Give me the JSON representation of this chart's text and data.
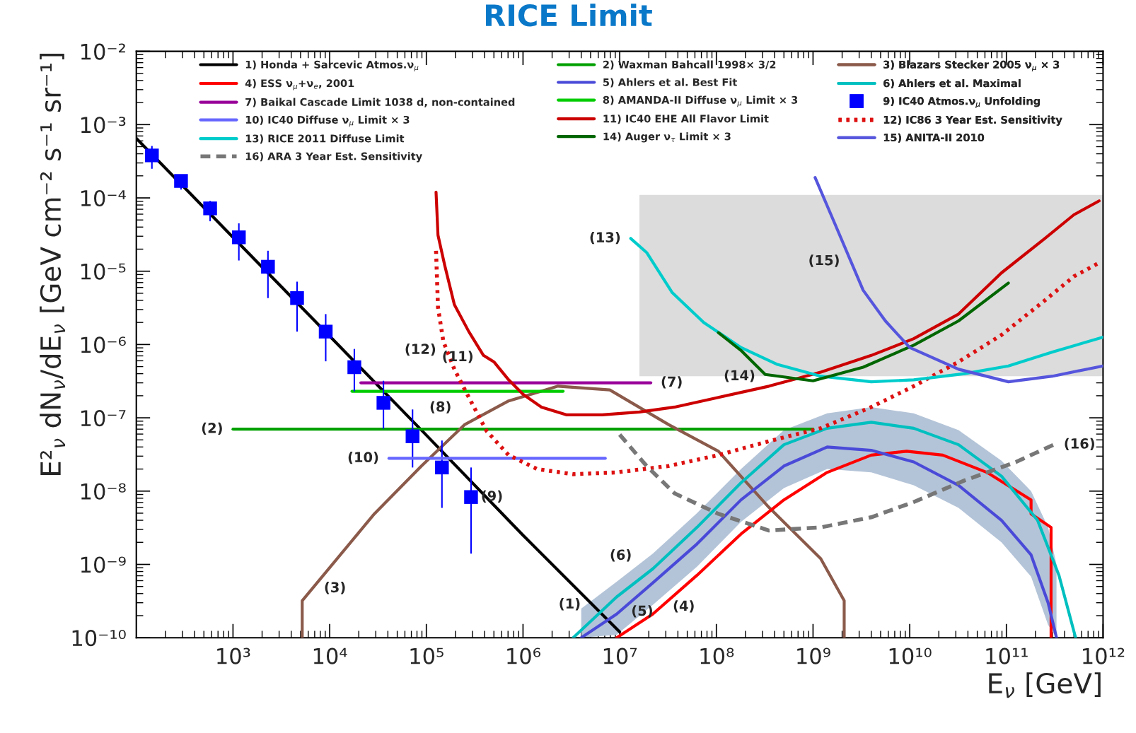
{
  "chart_data": {
    "type": "line",
    "title": "RICE Limit",
    "xlabel": "E$_{ν}$ [GeV]",
    "ylabel": "E²$_{ν}$ dN$_{ν}$/dE$_{ν}$ [GeV cm⁻² s⁻¹ sr⁻¹]",
    "log": "xy",
    "grid": false,
    "legend": "top",
    "xlim": [
      100,
      1000000000000.0
    ],
    "xticks": [
      {
        "value": 1000.0,
        "label": "10³"
      },
      {
        "value": 10000.0,
        "label": "10⁴"
      },
      {
        "value": 100000.0,
        "label": "10⁵"
      },
      {
        "value": 1000000.0,
        "label": "10⁶"
      },
      {
        "value": 10000000.0,
        "label": "10⁷"
      },
      {
        "value": 100000000.0,
        "label": "10⁸"
      },
      {
        "value": 1000000000.0,
        "label": "10⁹"
      },
      {
        "value": 10000000000.0,
        "label": "10¹⁰"
      },
      {
        "value": 100000000000.0,
        "label": "10¹¹"
      },
      {
        "value": 1000000000000.0,
        "label": "10¹²"
      }
    ],
    "ylim": [
      1e-10,
      0.01
    ],
    "yticks": [
      {
        "value": 1e-10,
        "label": "10⁻¹⁰"
      },
      {
        "value": 1e-09,
        "label": "10⁻⁹"
      },
      {
        "value": 1e-08,
        "label": "10⁻⁸"
      },
      {
        "value": 1e-07,
        "label": "10⁻⁷"
      },
      {
        "value": 1e-06,
        "label": "10⁻⁶"
      },
      {
        "value": 1e-05,
        "label": "10⁻⁵"
      },
      {
        "value": 0.0001,
        "label": "10⁻⁴"
      },
      {
        "value": 0.001,
        "label": "10⁻³"
      },
      {
        "value": 0.01,
        "label": "10⁻²"
      }
    ],
    "series": [
      {
        "type": "line",
        "color": "#dcdcdc",
        "x": [
          16000000.0,
          1000000000000.0
        ],
        "values": [
          null,
          null
        ],
        "upper": [
          0.00011,
          0.00011
        ],
        "lower": [
          3.7e-07,
          3.7e-07
        ]
      },
      {
        "type": "line",
        "color": "#b4c4d8",
        "x": [
          4000000.0,
          9300000.0,
          22000000.0,
          63000000.0,
          180000000.0,
          500000000.0,
          1400000000.0,
          4000000000.0,
          11000000000.0,
          32000000000.0,
          89000000000.0,
          180000000000.0,
          270000000000.0,
          330000000000.0
        ],
        "values": [
          null,
          null,
          null,
          null,
          null,
          null,
          null,
          null,
          null,
          null,
          null,
          null,
          null,
          null
        ],
        "upper": [
          2.5e-10,
          5.8e-10,
          1.4e-09,
          5e-09,
          2e-08,
          6.8e-08,
          1.15e-07,
          1.4e-07,
          1.15e-07,
          6.8e-08,
          2.6e-08,
          1e-08,
          3.2e-09,
          1e-09
        ],
        "lower": [
          1e-10,
          1.1e-10,
          2.8e-10,
          9.3e-10,
          3.8e-09,
          1.1e-08,
          2e-08,
          1.8e-08,
          1.2e-08,
          5.9e-09,
          2e-09,
          6.8e-10,
          1.5e-10,
          1e-10
        ]
      },
      {
        "name": "1) Honda + Sarcevic Atmos.ν$_{μ}$",
        "color": "#000000",
        "x": [
          100,
          1000.0,
          10000.0,
          100000.0,
          1000000.0,
          10000000.0
        ],
        "values": [
          0.00065,
          2.9e-05,
          1.3e-06,
          5.8e-08,
          2.5e-09,
          1.2e-10
        ]
      },
      {
        "name": "2) Waxman Bahcall 1998× 3/2",
        "color": "#00a000",
        "x": [
          1000.0,
          1000000000.0
        ],
        "values": [
          7e-08,
          7e-08
        ]
      },
      {
        "name": "3) Blazars Stecker 2005 ν$_{μ}$ × 3",
        "color": "#8b5a4a",
        "x": [
          5200.0,
          5200.0,
          29000.0,
          89000.0,
          250000.0,
          710000.0,
          2300000.0,
          7900000.0,
          32000000.0,
          105000000.0,
          350000000.0,
          1200000000.0,
          2100000000.0,
          2100000000.0
        ],
        "values": [
          1e-10,
          3.2e-10,
          4.9e-09,
          2.2e-08,
          8.1e-08,
          1.7e-07,
          2.7e-07,
          2.4e-07,
          8.1e-08,
          3.5e-08,
          6e-09,
          1.2e-09,
          3.2e-10,
          1e-10
        ]
      },
      {
        "name": "4) ESS ν$_{μ}$+ν$_{e}$, 2001",
        "color": "#ff0000",
        "x": [
          9300000.0,
          22000000.0,
          63000000.0,
          180000000.0,
          500000000.0,
          1400000000.0,
          4000000000.0,
          9300000000.0,
          22000000000.0,
          63000000000.0,
          180000000000.0,
          180000000000.0,
          290000000000.0,
          290000000000.0
        ],
        "values": [
          1e-10,
          2.1e-10,
          7.1e-10,
          2.6e-09,
          7.6e-09,
          1.8e-08,
          3.1e-08,
          3.5e-08,
          3.1e-08,
          1.8e-08,
          7.6e-09,
          4.9e-09,
          3.2e-09,
          1e-10
        ]
      },
      {
        "name": "5) Ahlers et al. Best Fit",
        "color": "#4a4ad8",
        "x": [
          4000000.0,
          9300000.0,
          22000000.0,
          63000000.0,
          180000000.0,
          500000000.0,
          1400000000.0,
          4000000000.0,
          11000000000.0,
          32000000000.0,
          89000000000.0,
          180000000000.0,
          270000000000.0,
          330000000000.0
        ],
        "values": [
          1e-10,
          2.1e-10,
          5.6e-10,
          1.9e-09,
          7.6e-09,
          2.2e-08,
          4e-08,
          3.6e-08,
          2.5e-08,
          1.2e-08,
          4e-09,
          1.35e-09,
          3e-10,
          1e-10
        ]
      },
      {
        "name": "6) Ahlers et al. Maximal",
        "color": "#00bfbf",
        "x": [
          3300000.0,
          9300000.0,
          22000000.0,
          63000000.0,
          180000000.0,
          500000000.0,
          1400000000.0,
          4000000000.0,
          11000000000.0,
          32000000000.0,
          89000000000.0,
          210000000000.0,
          350000000000.0,
          520000000000.0
        ],
        "values": [
          1e-10,
          3.6e-10,
          8.7e-10,
          3.2e-09,
          1.3e-08,
          4.3e-08,
          7.2e-08,
          8.7e-08,
          7.2e-08,
          4.3e-08,
          1.6e-08,
          4e-09,
          7.1e-10,
          1e-10
        ]
      },
      {
        "name": "7) Baikal Cascade Limit 1038 d, non-contained",
        "color": "#990099",
        "x": [
          21000.0,
          21000000.0
        ],
        "values": [
          3e-07,
          3e-07
        ]
      },
      {
        "name": "8) AMANDA-II Diffuse ν$_{μ}$ Limit × 3",
        "color": "#00cc00",
        "x": [
          17000.0,
          2600000.0
        ],
        "values": [
          2.3e-07,
          2.3e-07
        ]
      },
      {
        "name": "9) IC40 Atmos.ν$_{μ}$ Unfolding",
        "type": "scatter",
        "marker": "square",
        "color": "#0000ff",
        "x": [
          145,
          290,
          580,
          1150,
          2300,
          4600,
          9100,
          18000.0,
          36000.0,
          72000.0,
          145000.0,
          290000.0
        ],
        "values": [
          0.00038,
          0.00017,
          7.2e-05,
          2.9e-05,
          1.15e-05,
          4.3e-06,
          1.5e-06,
          4.9e-07,
          1.6e-07,
          5.6e-08,
          2.1e-08,
          8.3e-09
        ],
        "errors": [
          [
            0.00025,
            0.00051
          ],
          [
            0.00013,
            0.0002
          ],
          [
            4.8e-05,
            9.1e-05
          ],
          [
            1.4e-05,
            4.5e-05
          ],
          [
            4.3e-06,
            1.9e-05
          ],
          [
            1.5e-06,
            7.2e-06
          ],
          [
            5.9e-07,
            2.6e-06
          ],
          [
            2.3e-07,
            8.7e-07
          ],
          [
            7.1e-08,
            3.2e-07
          ],
          [
            2.1e-08,
            1.3e-07
          ],
          [
            5.9e-09,
            4.9e-08
          ],
          [
            1.4e-09,
            2.1e-08
          ]
        ]
      },
      {
        "name": "10) IC40 Diffuse ν$_{μ}$ Limit × 3",
        "color": "#6666ff",
        "x": [
          41000.0,
          7100000.0
        ],
        "values": [
          2.8e-08,
          2.8e-08
        ]
      },
      {
        "name": "11) IC40 EHE All Flavor Limit",
        "color": "#cc0000",
        "x": [
          126000.0,
          132000.0,
          155000.0,
          195000.0,
          275000.0,
          390000.0,
          500000.0,
          710000.0,
          1000000.0,
          1550000.0,
          2800000.0,
          6600000.0,
          16000000.0,
          37000000.0,
          105000000.0,
          350000000.0,
          1200000000.0,
          4000000000.0,
          11000000000.0,
          32000000000.0,
          89000000000.0,
          250000000000.0,
          500000000000.0,
          910000000000.0
        ],
        "values": [
          0.00012,
          3.1e-05,
          1.2e-05,
          3.5e-06,
          1.5e-06,
          7.1e-07,
          5.8e-07,
          3.3e-07,
          2.1e-07,
          1.4e-07,
          1.1e-07,
          1.1e-07,
          1.2e-07,
          1.4e-07,
          1.9e-07,
          2.7e-07,
          4.2e-07,
          7.1e-07,
          1.2e-06,
          2.6e-06,
          9.5e-06,
          2.8e-05,
          5.9e-05,
          9.1e-05
        ]
      },
      {
        "name": "12) IC86 3 Year Est. Sensitivity",
        "color": "#dd1111",
        "line_style": "dotted",
        "x": [
          126000.0,
          132000.0,
          150000.0,
          195000.0,
          275000.0,
          420000.0,
          710000.0,
          1400000.0,
          3300000.0,
          9300000.0,
          32000000.0,
          105000000.0,
          350000000.0,
          1200000000.0,
          4000000000.0,
          11000000000.0,
          32000000000.0,
          89000000000.0,
          250000000000.0,
          500000000000.0,
          910000000000.0
        ],
        "values": [
          1.9e-05,
          3.2e-06,
          1.1e-06,
          4.6e-07,
          1.9e-07,
          6.6e-08,
          3.1e-08,
          2e-08,
          1.7e-08,
          1.8e-08,
          2.2e-08,
          3.1e-08,
          4.8e-08,
          7.2e-08,
          1.4e-07,
          2.7e-07,
          5.8e-07,
          1.35e-06,
          4e-06,
          8.5e-06,
          1.3e-05
        ]
      },
      {
        "name": "13) RICE 2011 Diffuse Limit",
        "color": "#00cccc",
        "x": [
          13000000.0,
          19000000.0,
          35000000.0,
          74000000.0,
          180000000.0,
          420000000.0,
          1200000000.0,
          4000000000.0,
          11000000000.0,
          37000000000.0,
          105000000000.0,
          300000000000.0,
          1000000000000.0
        ],
        "values": [
          2.8e-05,
          1.8e-05,
          5.1e-06,
          2e-06,
          9.1e-07,
          5.4e-07,
          3.7e-07,
          3.1e-07,
          3.3e-07,
          4e-07,
          5.1e-07,
          7.9e-07,
          1.26e-06
        ]
      },
      {
        "name": "14) Auger ν$_{τ}$ Limit × 3",
        "color": "#006600",
        "x": [
          105000000.0,
          180000000.0,
          320000000.0,
          1000000000.0,
          3300000000.0,
          11000000000.0,
          32000000000.0,
          105000000000.0
        ],
        "values": [
          1.45e-06,
          8.3e-07,
          3.9e-07,
          3.2e-07,
          4.9e-07,
          9.8e-07,
          2.1e-06,
          6.9e-06
        ]
      },
      {
        "name": "15) ANITA-II 2010",
        "color": "#5555dd",
        "x": [
          1050000000.0,
          1700000000.0,
          3300000000.0,
          5600000000.0,
          10000000000.0,
          32000000000.0,
          105000000000.0,
          300000000000.0,
          1000000000000.0
        ],
        "values": [
          0.00019,
          4.3e-05,
          5.5e-06,
          2.1e-06,
          9.1e-07,
          4.6e-07,
          3.1e-07,
          3.7e-07,
          5.1e-07
        ]
      },
      {
        "name": "16) ARA 3 Year Est. Sensitivity",
        "color": "#777777",
        "line_style": "dashed",
        "x": [
          10000000.0,
          19000000.0,
          37000000.0,
          105000000.0,
          350000000.0,
          1200000000.0,
          4000000000.0,
          11000000000.0,
          37000000000.0,
          126000000000.0,
          310000000000.0
        ],
        "values": [
          5.9e-08,
          2.2e-08,
          9.3e-09,
          4.9e-09,
          2.9e-09,
          3.2e-09,
          4.4e-09,
          7.1e-09,
          1.4e-08,
          2.5e-08,
          4.3e-08
        ]
      }
    ],
    "annotations": [
      {
        "text": "(1)",
        "x": 5000000.0,
        "y": 3e-10
      },
      {
        "text": "(2)",
        "x": 1000.0,
        "y": 7e-08
      },
      {
        "text": "(3)",
        "x": 6900.0,
        "y": 5e-10
      },
      {
        "text": "(4)",
        "x": 28000000.0,
        "y": 2.8e-10
      },
      {
        "text": "(5)",
        "x": 10400000.0,
        "y": 2.4e-10
      },
      {
        "text": "(6)",
        "x": 14000000.0,
        "y": 8.8e-10
      },
      {
        "text": "(7)",
        "x": 21000000.0,
        "y": 3e-07
      },
      {
        "text": "(8)",
        "x": 140000.0,
        "y": 2.3e-07
      },
      {
        "text": "(9)",
        "x": 290000.0,
        "y": 8.3e-09
      },
      {
        "text": "(10)",
        "x": 41000.0,
        "y": 2.8e-08
      },
      {
        "text": "(11)",
        "x": 390000.0,
        "y": 7.1e-07
      },
      {
        "text": "(12)",
        "x": 160000.0,
        "y": 8.9e-07
      },
      {
        "text": "(13)",
        "x": 13000000.0,
        "y": 2.8e-05
      },
      {
        "text": "(14)",
        "x": 320000000.0,
        "y": 3.9e-07
      },
      {
        "text": "(15)",
        "x": 2400000000.0,
        "y": 1.45e-05
      },
      {
        "text": "(16)",
        "x": 310000000000.0,
        "y": 4.3e-08
      }
    ]
  }
}
